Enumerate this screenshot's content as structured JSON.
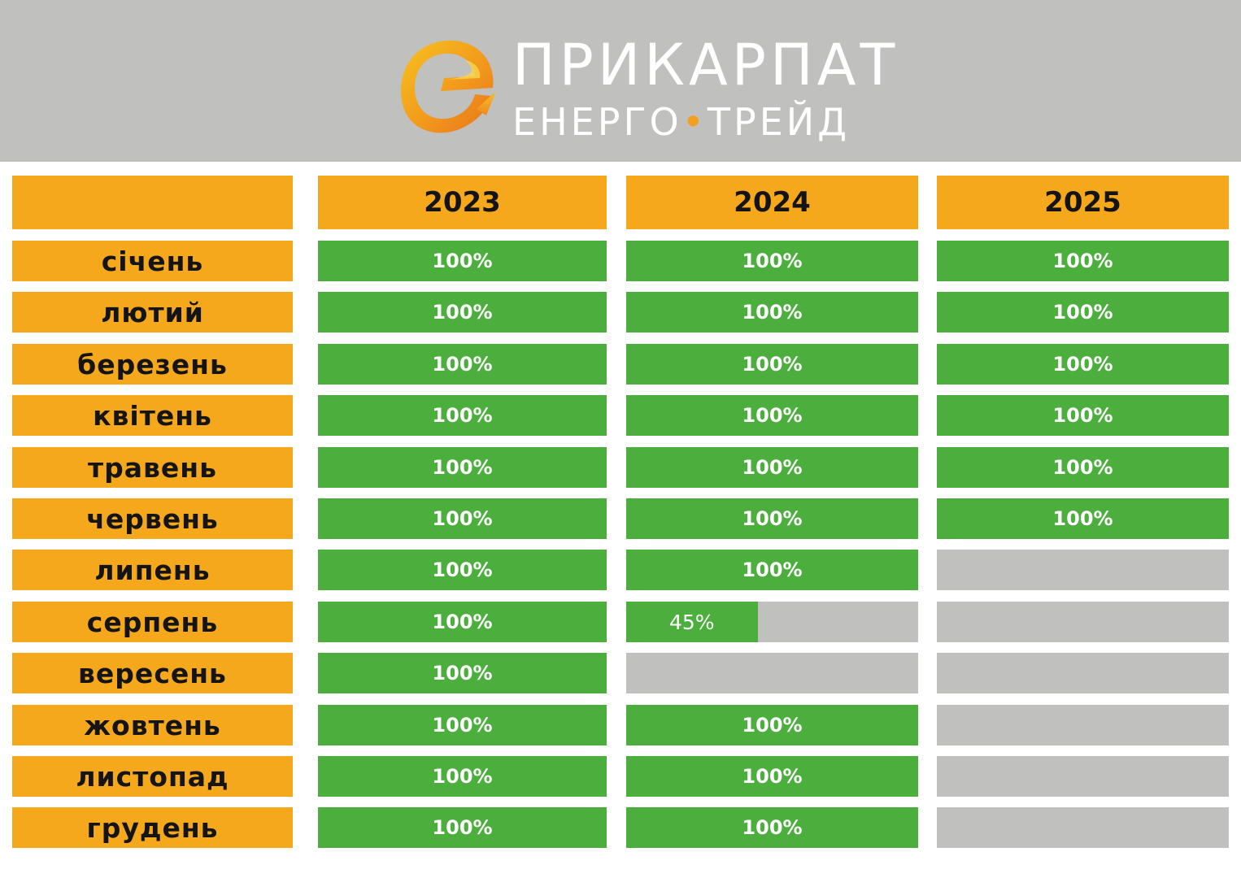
{
  "brand": {
    "name_line1": "ПРИКАРПАТ",
    "name_line2_a": "ЕНЕРГО",
    "name_line2_sep": "•",
    "name_line2_b": "ТРЕЙД",
    "logo_icon": "orange-e-swirl-icon",
    "accent_color": "#f2a11e"
  },
  "colors": {
    "header_bg": "#c0c0bf",
    "label_bg": "#f5a81b",
    "done": "#4cae3d",
    "pending": "#c0c0bf"
  },
  "table": {
    "corner_label": "",
    "years": [
      "2023",
      "2024",
      "2025"
    ],
    "months": [
      {
        "name": "січень",
        "values": [
          "100%",
          "100%",
          "100%"
        ],
        "progress": [
          100,
          100,
          100
        ]
      },
      {
        "name": "лютий",
        "values": [
          "100%",
          "100%",
          "100%"
        ],
        "progress": [
          100,
          100,
          100
        ]
      },
      {
        "name": "березень",
        "values": [
          "100%",
          "100%",
          "100%"
        ],
        "progress": [
          100,
          100,
          100
        ]
      },
      {
        "name": "квітень",
        "values": [
          "100%",
          "100%",
          "100%"
        ],
        "progress": [
          100,
          100,
          100
        ]
      },
      {
        "name": "травень",
        "values": [
          "100%",
          "100%",
          "100%"
        ],
        "progress": [
          100,
          100,
          100
        ]
      },
      {
        "name": "червень",
        "values": [
          "100%",
          "100%",
          "100%"
        ],
        "progress": [
          100,
          100,
          100
        ]
      },
      {
        "name": "липень",
        "values": [
          "100%",
          "100%",
          ""
        ],
        "progress": [
          100,
          100,
          0
        ]
      },
      {
        "name": "серпень",
        "values": [
          "100%",
          "45%",
          ""
        ],
        "progress": [
          100,
          45,
          0
        ]
      },
      {
        "name": "вересень",
        "values": [
          "100%",
          "",
          ""
        ],
        "progress": [
          100,
          0,
          0
        ]
      },
      {
        "name": "жовтень",
        "values": [
          "100%",
          "100%",
          ""
        ],
        "progress": [
          100,
          100,
          0
        ]
      },
      {
        "name": "листопад",
        "values": [
          "100%",
          "100%",
          ""
        ],
        "progress": [
          100,
          100,
          0
        ]
      },
      {
        "name": "грудень",
        "values": [
          "100%",
          "100%",
          ""
        ],
        "progress": [
          100,
          100,
          0
        ]
      }
    ]
  }
}
